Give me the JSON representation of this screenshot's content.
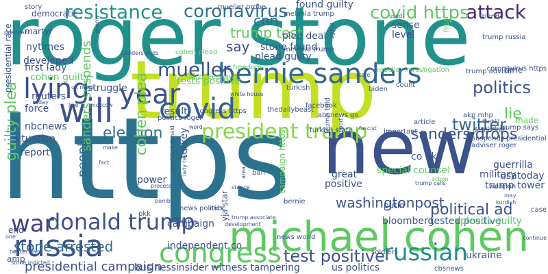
{
  "cloud": {
    "words": [
      {
        "text": "roger stone",
        "color": "#21918c"
      },
      {
        "text": "trump",
        "color": "#c2df23"
      },
      {
        "text": "https",
        "color": "#2c728e"
      },
      {
        "text": "new",
        "color": "#3b528b"
      },
      {
        "text": "michael cohen",
        "color": "#5ec962"
      },
      {
        "text": "bernie sanders",
        "color": "#31688e"
      },
      {
        "text": "russia",
        "color": "#3b528b"
      },
      {
        "text": "congress",
        "color": "#5ec962"
      },
      {
        "text": "russian",
        "color": "#228c8d"
      },
      {
        "text": "covid",
        "color": "#355f8d"
      },
      {
        "text": "will",
        "color": "#3b528b"
      },
      {
        "text": "lying",
        "color": "#3b528b"
      },
      {
        "text": "year",
        "color": "#3b528b"
      },
      {
        "text": "war",
        "color": "#433e85"
      },
      {
        "text": "donald trump",
        "color": "#3b528b"
      },
      {
        "text": "resistance",
        "color": "#21918c"
      },
      {
        "text": "coronavirus",
        "color": "#2c728e"
      },
      {
        "text": "president trump",
        "color": "#86d549"
      },
      {
        "text": "test positive",
        "color": "#3b528b"
      },
      {
        "text": "attack",
        "color": "#482878"
      },
      {
        "text": "covid https",
        "color": "#5ec962"
      },
      {
        "text": "politics",
        "color": "#3b528b"
      },
      {
        "text": "twitter",
        "color": "#31688e"
      },
      {
        "text": "mueller",
        "color": "#3b528b"
      },
      {
        "text": "sanders drops",
        "color": "#3b528b"
      },
      {
        "text": "political ad",
        "color": "#3b528b"
      },
      {
        "text": "election",
        "color": "#2c728e"
      },
      {
        "text": "lie",
        "color": "#5ec962"
      },
      {
        "text": "guilty plea",
        "color": "#5ec962"
      },
      {
        "text": "cohen plea",
        "color": "#5ec962"
      },
      {
        "text": "stone arrested",
        "color": "#31688e"
      },
      {
        "text": "washingtonpost",
        "color": "#3b528b"
      },
      {
        "text": "presidential campaign",
        "color": "#3b528b"
      },
      {
        "text": "trump test",
        "color": "#5ec962"
      },
      {
        "text": "say",
        "color": "#3b528b"
      },
      {
        "text": "cnn",
        "color": "#31688e"
      },
      {
        "text": "sanders suspends",
        "color": "#5ec962"
      },
      {
        "text": "people",
        "color": "#31688e"
      },
      {
        "text": "bloomberg",
        "color": "#3b528b"
      },
      {
        "text": "tested positive",
        "color": "#31688e"
      },
      {
        "text": "pleads guilty",
        "color": "#5ec962"
      },
      {
        "text": "found guilty",
        "color": "#3b528b"
      },
      {
        "text": "plea deal",
        "color": "#3b528b"
      },
      {
        "text": "stone found",
        "color": "#3b528b"
      },
      {
        "text": "plead guilty",
        "color": "#3b528b"
      },
      {
        "text": "level",
        "color": "#3b528b"
      },
      {
        "text": "sense",
        "color": "#3b528b"
      },
      {
        "text": "force",
        "color": "#3b528b"
      },
      {
        "text": "first lady",
        "color": "#3b528b"
      },
      {
        "text": "reuters",
        "color": "#3b528b"
      },
      {
        "text": "struggle",
        "color": "#3b528b"
      },
      {
        "text": "nbcnews",
        "color": "#3b528b"
      },
      {
        "text": "independent co",
        "color": "#3b528b"
      },
      {
        "text": "campaign",
        "color": "#3b528b"
      },
      {
        "text": "witness tampering",
        "color": "#3b528b"
      },
      {
        "text": "us politics",
        "color": "#3b528b"
      },
      {
        "text": "businessinsider",
        "color": "#3b528b"
      },
      {
        "text": "ukraine",
        "color": "#3b528b"
      },
      {
        "text": "guerrilla",
        "color": "#3b528b"
      },
      {
        "text": "usatoday",
        "color": "#3b528b"
      },
      {
        "text": "trump tower",
        "color": "#3b528b"
      },
      {
        "text": "military",
        "color": "#3b528b"
      },
      {
        "text": "co uk",
        "color": "#3b528b"
      },
      {
        "text": "special counsel",
        "color": "#5ec962"
      },
      {
        "text": "great",
        "color": "#3b528b"
      },
      {
        "text": "positive",
        "color": "#3b528b"
      },
      {
        "text": "turkey",
        "color": "#3b528b"
      },
      {
        "text": "situation",
        "color": "#3b528b"
      },
      {
        "text": "report",
        "color": "#3b528b"
      },
      {
        "text": "power",
        "color": "#3b528b"
      },
      {
        "text": "result",
        "color": "#3b528b"
      },
      {
        "text": "tests positive",
        "color": "#5ec962"
      },
      {
        "text": "cohen guilty",
        "color": "#5ec962"
      },
      {
        "text": "developed",
        "color": "#3b528b"
      },
      {
        "text": "nytimes",
        "color": "#3b528b"
      },
      {
        "text": "martyr",
        "color": "#3b528b"
      },
      {
        "text": "democratic",
        "color": "#3b528b"
      },
      {
        "text": "story",
        "color": "#3b528b"
      },
      {
        "text": "mueller probe",
        "color": "#3b528b"
      },
      {
        "text": "melania trump",
        "color": "#3b528b"
      },
      {
        "text": "time",
        "color": "#3b528b"
      },
      {
        "text": "trump russia",
        "color": "#3b528b"
      },
      {
        "text": "article",
        "color": "#3b528b"
      },
      {
        "text": "important",
        "color": "#3b528b"
      },
      {
        "text": "biden",
        "color": "#3b528b"
      },
      {
        "text": "putin",
        "color": "#3b528b"
      },
      {
        "text": "amp",
        "color": "#3b528b"
      },
      {
        "text": "end",
        "color": "#3b528b"
      },
      {
        "text": "presidential race",
        "color": "#3b528b"
      },
      {
        "text": "made",
        "color": "#5ec962"
      },
      {
        "text": "trump says",
        "color": "#3b528b"
      },
      {
        "text": "coronavirus https",
        "color": "#3b528b"
      },
      {
        "text": "trump adviser",
        "color": "#3b528b"
      },
      {
        "text": "mueller investigation",
        "color": "#5ec962"
      },
      {
        "text": "freedom",
        "color": "#5ec962"
      },
      {
        "text": "abcnews go",
        "color": "#3b528b"
      },
      {
        "text": "facebook",
        "color": "#3b528b"
      },
      {
        "text": "thedailybeast",
        "color": "#3b528b"
      },
      {
        "text": "politics roger",
        "color": "#3b528b"
      },
      {
        "text": "congress https",
        "color": "#3b528b"
      },
      {
        "text": "turkish",
        "color": "#3b528b"
      },
      {
        "text": "cohen plead",
        "color": "#5ec962"
      },
      {
        "text": "buzzfeednews",
        "color": "#5ec962"
      },
      {
        "text": "syria",
        "color": "#3b528b"
      },
      {
        "text": "trump told",
        "color": "#3b528b"
      },
      {
        "text": "turkish state",
        "color": "#3b528b"
      },
      {
        "text": "cnbc",
        "color": "#3b528b"
      },
      {
        "text": "pkk",
        "color": "#3b528b"
      },
      {
        "text": "akp mhp",
        "color": "#3b528b"
      },
      {
        "text": "democrat",
        "color": "#3b528b"
      },
      {
        "text": "suspends presidential",
        "color": "#3b528b"
      },
      {
        "text": "adviser roger",
        "color": "#3b528b"
      },
      {
        "text": "news world",
        "color": "#3b528b"
      },
      {
        "text": "yja star",
        "color": "#3b528b"
      },
      {
        "text": "campaign https",
        "color": "#5ec962"
      },
      {
        "text": "cbsnews",
        "color": "#3b528b"
      },
      {
        "text": "soldiers",
        "color": "#3b528b"
      },
      {
        "text": "bernie",
        "color": "#3b528b"
      },
      {
        "text": "melania trump",
        "color": "#3b528b"
      },
      {
        "text": "president",
        "color": "#3b528b"
      },
      {
        "text": "first",
        "color": "#5ec962"
      },
      {
        "text": "friend",
        "color": "#3b528b"
      },
      {
        "text": "used",
        "color": "#3b528b"
      },
      {
        "text": "count",
        "color": "#3b528b"
      },
      {
        "text": "news politics",
        "color": "#3b528b"
      },
      {
        "text": "stone indicted",
        "color": "#3b528b"
      },
      {
        "text": "twitter ban",
        "color": "#3b528b"
      },
      {
        "text": "one",
        "color": "#3b528b"
      },
      {
        "text": "state",
        "color": "#3b528b"
      },
      {
        "text": "bomb",
        "color": "#3b528b"
      },
      {
        "text": "kurdistan",
        "color": "#3b528b"
      },
      {
        "text": "development",
        "color": "#3b528b"
      },
      {
        "text": "trump associate",
        "color": "#3b528b"
      },
      {
        "text": "weapon",
        "color": "#3b528b"
      },
      {
        "text": "case",
        "color": "#3b528b"
      },
      {
        "text": "fact",
        "color": "#3b528b"
      },
      {
        "text": "process",
        "color": "#3b528b"
      },
      {
        "text": "fascist",
        "color": "#3b528b"
      },
      {
        "text": "moscow",
        "color": "#3b528b"
      },
      {
        "text": "trump calls",
        "color": "#3b528b"
      },
      {
        "text": "may",
        "color": "#3b528b"
      },
      {
        "text": "ban",
        "color": "#3b528b"
      },
      {
        "text": "area",
        "color": "#3b528b"
      },
      {
        "text": "word",
        "color": "#3b528b"
      },
      {
        "text": "action",
        "color": "#5ec962"
      },
      {
        "text": "support",
        "color": "#3b528b"
      },
      {
        "text": "continue",
        "color": "#3b528b"
      },
      {
        "text": "created",
        "color": "#3b528b"
      },
      {
        "text": "said",
        "color": "#3b528b"
      },
      {
        "text": "make",
        "color": "#3b528b"
      },
      {
        "text": "line",
        "color": "#3b528b"
      },
      {
        "text": "today",
        "color": "#3b528b"
      },
      {
        "text": "lady test",
        "color": "#3b528b"
      },
      {
        "text": "president donald",
        "color": "#3b528b"
      },
      {
        "text": "white house",
        "color": "#3b528b"
      },
      {
        "text": "kurdish",
        "color": "#3b528b"
      },
      {
        "text": "stance",
        "color": "#3b528b"
      },
      {
        "text": "enemy",
        "color": "#3b528b"
      },
      {
        "text": "sanders ends",
        "color": "#3b528b"
      },
      {
        "text": "uk news",
        "color": "#3b528b"
      },
      {
        "text": "thehill",
        "color": "#3b528b"
      },
      {
        "text": "hold independent",
        "color": "#3b528b"
      }
    ]
  }
}
